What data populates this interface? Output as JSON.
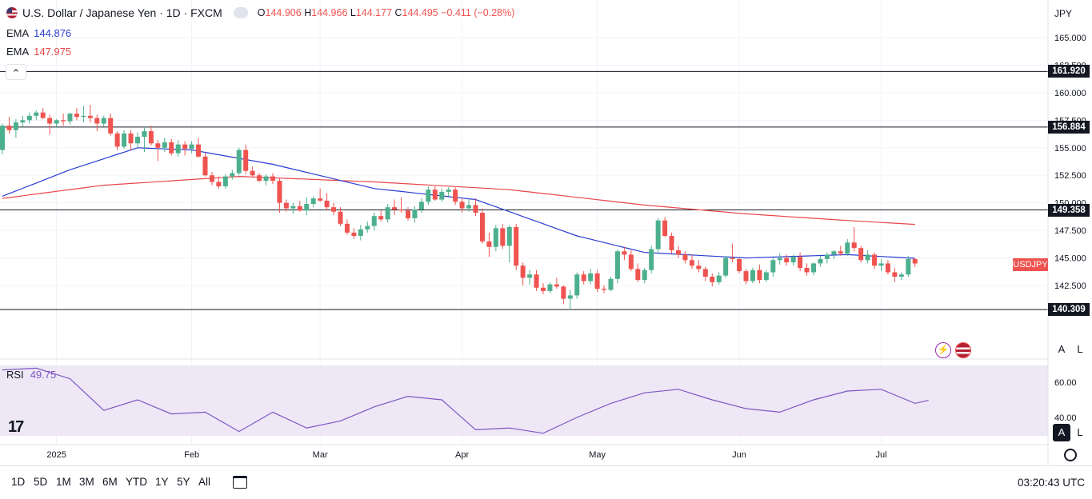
{
  "legend": {
    "symbol_title": "U.S. Dollar / Japanese Yen · 1D · FXCM",
    "ohlc": {
      "o_label": "O",
      "o": "144.906",
      "h_label": "H",
      "h": "144.966",
      "l_label": "L",
      "l": "144.177",
      "c_label": "C",
      "c": "144.495",
      "change": "−0.411 (−0.28%)"
    },
    "ema1": {
      "label": "EMA",
      "value": "144.876"
    },
    "ema2": {
      "label": "EMA",
      "value": "147.975"
    }
  },
  "colors": {
    "up": "#4caf8d",
    "down": "#ef5350",
    "ema_fast": "#2b3dcf",
    "ema_slow": "#e8464b",
    "rsi": "#7e57c2",
    "rsi_band": "#ede7f6"
  },
  "price_axis": {
    "currency": "JPY",
    "ticks": [
      "165.000",
      "162.500",
      "160.000",
      "157.500",
      "155.000",
      "152.500",
      "150.000",
      "147.500",
      "145.000",
      "142.500"
    ]
  },
  "levels": [
    {
      "value": 161.92,
      "label": "161.920"
    },
    {
      "value": 156.884,
      "label": "156.884"
    },
    {
      "value": 149.358,
      "label": "149.358"
    },
    {
      "value": 140.309,
      "label": "140.309"
    }
  ],
  "last_price_label": "USDJPY",
  "rsi": {
    "label": "RSI",
    "value": "49.75",
    "ticks": [
      "60.00",
      "40.00"
    ]
  },
  "time_axis": [
    "2025",
    "Feb",
    "Mar",
    "Apr",
    "May",
    "Jun",
    "Jul"
  ],
  "timeframes": [
    "1D",
    "5D",
    "1M",
    "3M",
    "6M",
    "YTD",
    "1Y",
    "5Y",
    "All"
  ],
  "clock": "03:20:43 UTC",
  "buttons": {
    "auto": "A",
    "log": "L",
    "collapse": "⌃"
  },
  "logo_text": "17",
  "chart_data": {
    "type": "candlestick",
    "title": "U.S. Dollar / Japanese Yen · 1D · FXCM",
    "ylim": [
      138.5,
      166.5
    ],
    "candles": [
      [
        154.8,
        157.2,
        154.4,
        157.0
      ],
      [
        157.0,
        157.8,
        156.3,
        156.6
      ],
      [
        156.6,
        157.6,
        155.9,
        157.3
      ],
      [
        157.3,
        157.9,
        156.9,
        157.5
      ],
      [
        157.5,
        158.2,
        157.2,
        157.9
      ],
      [
        157.9,
        158.4,
        157.5,
        158.2
      ],
      [
        158.2,
        158.6,
        157.6,
        157.7
      ],
      [
        157.7,
        158.0,
        156.2,
        157.2
      ],
      [
        157.2,
        157.6,
        156.8,
        157.5
      ],
      [
        157.5,
        158.1,
        157.0,
        157.4
      ],
      [
        157.4,
        158.2,
        157.1,
        158.1
      ],
      [
        158.1,
        158.6,
        157.5,
        157.8
      ],
      [
        157.8,
        158.8,
        157.3,
        157.9
      ],
      [
        157.9,
        158.9,
        157.3,
        157.7
      ],
      [
        157.7,
        158.0,
        156.5,
        157.2
      ],
      [
        157.2,
        157.9,
        156.9,
        157.7
      ],
      [
        157.7,
        158.1,
        156.1,
        156.3
      ],
      [
        156.3,
        156.5,
        154.8,
        155.1
      ],
      [
        155.1,
        156.6,
        154.9,
        156.3
      ],
      [
        156.3,
        156.6,
        154.8,
        155.4
      ],
      [
        155.4,
        156.4,
        155.0,
        156.0
      ],
      [
        156.0,
        156.9,
        154.6,
        156.5
      ],
      [
        156.5,
        157.0,
        155.2,
        155.4
      ],
      [
        155.4,
        155.7,
        153.8,
        155.0
      ],
      [
        155.0,
        155.9,
        154.6,
        155.5
      ],
      [
        155.5,
        155.8,
        154.3,
        154.5
      ],
      [
        154.5,
        155.7,
        154.2,
        155.3
      ],
      [
        155.3,
        155.6,
        154.3,
        154.9
      ],
      [
        154.9,
        155.6,
        154.5,
        155.3
      ],
      [
        155.3,
        155.9,
        154.1,
        154.2
      ],
      [
        154.2,
        154.5,
        152.4,
        152.5
      ],
      [
        152.5,
        152.8,
        151.6,
        151.9
      ],
      [
        151.9,
        152.4,
        151.3,
        151.5
      ],
      [
        151.5,
        152.6,
        151.3,
        152.4
      ],
      [
        152.4,
        153.0,
        152.1,
        152.7
      ],
      [
        152.7,
        155.0,
        152.5,
        154.8
      ],
      [
        154.8,
        155.3,
        152.6,
        152.9
      ],
      [
        152.9,
        153.3,
        152.3,
        152.5
      ],
      [
        152.5,
        152.7,
        151.9,
        152.0
      ],
      [
        152.0,
        152.6,
        151.6,
        152.4
      ],
      [
        152.4,
        152.7,
        151.7,
        152.0
      ],
      [
        152.0,
        152.3,
        149.1,
        150.0
      ],
      [
        150.0,
        150.3,
        149.2,
        149.5
      ],
      [
        149.5,
        150.0,
        149.0,
        149.7
      ],
      [
        149.7,
        150.2,
        149.2,
        149.3
      ],
      [
        149.3,
        150.5,
        148.9,
        149.9
      ],
      [
        149.9,
        150.6,
        149.6,
        150.4
      ],
      [
        150.4,
        151.3,
        150.1,
        150.2
      ],
      [
        150.2,
        150.9,
        149.3,
        149.6
      ],
      [
        149.6,
        150.0,
        148.9,
        149.2
      ],
      [
        149.2,
        149.6,
        147.9,
        148.1
      ],
      [
        148.1,
        148.5,
        147.1,
        147.3
      ],
      [
        147.3,
        147.7,
        146.7,
        147.0
      ],
      [
        147.0,
        148.0,
        146.6,
        147.6
      ],
      [
        147.6,
        148.3,
        147.3,
        147.9
      ],
      [
        147.9,
        149.1,
        147.5,
        148.8
      ],
      [
        148.8,
        149.3,
        148.3,
        148.5
      ],
      [
        148.5,
        149.9,
        148.2,
        149.6
      ],
      [
        149.6,
        150.3,
        148.9,
        149.4
      ],
      [
        149.4,
        150.5,
        149.1,
        149.3
      ],
      [
        149.3,
        149.6,
        148.4,
        148.6
      ],
      [
        148.6,
        149.7,
        148.2,
        149.4
      ],
      [
        149.4,
        150.4,
        149.1,
        150.1
      ],
      [
        150.1,
        151.5,
        149.8,
        151.2
      ],
      [
        151.2,
        151.5,
        150.2,
        150.3
      ],
      [
        150.3,
        151.3,
        150.1,
        151.0
      ],
      [
        151.0,
        151.4,
        150.6,
        151.2
      ],
      [
        151.2,
        151.4,
        149.8,
        150.1
      ],
      [
        150.1,
        150.4,
        149.1,
        149.5
      ],
      [
        149.5,
        150.4,
        149.2,
        149.8
      ],
      [
        149.8,
        150.4,
        148.8,
        149.1
      ],
      [
        149.1,
        149.5,
        146.3,
        146.5
      ],
      [
        146.5,
        147.3,
        145.1,
        146.0
      ],
      [
        146.0,
        148.0,
        145.6,
        147.7
      ],
      [
        147.7,
        148.1,
        145.8,
        146.1
      ],
      [
        146.1,
        148.0,
        144.6,
        147.8
      ],
      [
        147.8,
        148.1,
        143.9,
        144.3
      ],
      [
        144.3,
        144.6,
        142.5,
        143.2
      ],
      [
        143.2,
        143.9,
        142.6,
        143.5
      ],
      [
        143.5,
        143.9,
        142.0,
        142.3
      ],
      [
        142.3,
        142.7,
        141.7,
        142.0
      ],
      [
        142.0,
        142.8,
        141.8,
        142.6
      ],
      [
        142.6,
        143.2,
        142.2,
        142.4
      ],
      [
        142.4,
        142.5,
        140.8,
        141.3
      ],
      [
        141.3,
        142.1,
        140.3,
        141.6
      ],
      [
        141.6,
        143.7,
        141.3,
        143.5
      ],
      [
        143.5,
        143.8,
        142.6,
        142.9
      ],
      [
        142.9,
        144.0,
        142.6,
        143.6
      ],
      [
        143.6,
        143.9,
        141.9,
        142.2
      ],
      [
        142.2,
        142.5,
        141.8,
        142.1
      ],
      [
        142.1,
        143.3,
        142.0,
        143.1
      ],
      [
        143.1,
        145.8,
        142.7,
        145.6
      ],
      [
        145.6,
        146.0,
        144.8,
        145.3
      ],
      [
        145.3,
        145.7,
        143.8,
        144.0
      ],
      [
        144.0,
        144.5,
        142.8,
        143.0
      ],
      [
        143.0,
        144.1,
        142.7,
        143.9
      ],
      [
        143.9,
        146.1,
        143.6,
        145.8
      ],
      [
        145.8,
        148.6,
        145.4,
        148.4
      ],
      [
        148.4,
        148.7,
        146.9,
        147.0
      ],
      [
        147.0,
        147.3,
        145.4,
        145.7
      ],
      [
        145.7,
        146.1,
        145.0,
        145.3
      ],
      [
        145.3,
        145.6,
        144.5,
        144.8
      ],
      [
        144.8,
        145.3,
        144.0,
        144.3
      ],
      [
        144.3,
        144.8,
        143.7,
        144.0
      ],
      [
        144.0,
        144.2,
        142.9,
        143.3
      ],
      [
        143.3,
        143.6,
        142.4,
        142.8
      ],
      [
        142.8,
        143.7,
        142.6,
        143.4
      ],
      [
        143.4,
        145.2,
        143.2,
        145.0
      ],
      [
        145.0,
        146.3,
        144.6,
        144.9
      ],
      [
        144.9,
        145.0,
        143.6,
        143.8
      ],
      [
        143.8,
        144.0,
        142.6,
        142.9
      ],
      [
        142.9,
        144.1,
        142.7,
        143.9
      ],
      [
        143.9,
        144.4,
        142.7,
        143.0
      ],
      [
        143.0,
        143.9,
        142.8,
        143.7
      ],
      [
        143.7,
        145.0,
        143.3,
        144.8
      ],
      [
        144.8,
        145.4,
        144.4,
        145.0
      ],
      [
        145.0,
        145.3,
        144.3,
        144.6
      ],
      [
        144.6,
        145.3,
        144.3,
        145.1
      ],
      [
        145.1,
        145.5,
        143.8,
        144.1
      ],
      [
        144.1,
        144.5,
        143.4,
        143.7
      ],
      [
        143.7,
        144.6,
        143.4,
        144.5
      ],
      [
        144.5,
        145.2,
        144.2,
        144.9
      ],
      [
        144.9,
        145.5,
        144.5,
        145.3
      ],
      [
        145.3,
        145.7,
        144.9,
        145.6
      ],
      [
        145.6,
        146.1,
        145.2,
        145.4
      ],
      [
        145.4,
        146.7,
        145.2,
        146.4
      ],
      [
        146.4,
        147.8,
        145.6,
        145.9
      ],
      [
        145.9,
        146.1,
        144.6,
        144.8
      ],
      [
        144.8,
        145.7,
        144.5,
        145.3
      ],
      [
        145.3,
        145.5,
        144.0,
        144.3
      ],
      [
        144.3,
        144.9,
        143.8,
        144.5
      ],
      [
        144.5,
        144.8,
        143.5,
        143.7
      ],
      [
        143.7,
        144.1,
        142.8,
        143.3
      ],
      [
        143.3,
        143.7,
        143.0,
        143.5
      ],
      [
        143.5,
        145.2,
        143.3,
        144.9
      ],
      [
        144.906,
        144.966,
        144.177,
        144.495
      ]
    ],
    "ema_fast": [
      [
        0,
        150.6
      ],
      [
        10,
        153.0
      ],
      [
        20,
        155.0
      ],
      [
        28,
        154.8
      ],
      [
        40,
        153.5
      ],
      [
        55,
        151.3
      ],
      [
        70,
        150.3
      ],
      [
        85,
        147.0
      ],
      [
        95,
        145.5
      ],
      [
        110,
        145.0
      ],
      [
        125,
        145.3
      ],
      [
        137,
        144.9
      ]
    ],
    "ema_slow": [
      [
        0,
        150.4
      ],
      [
        15,
        151.6
      ],
      [
        35,
        152.4
      ],
      [
        55,
        151.9
      ],
      [
        75,
        151.2
      ],
      [
        95,
        149.8
      ],
      [
        110,
        149.0
      ],
      [
        125,
        148.4
      ],
      [
        137,
        147.975
      ]
    ],
    "rsi_values": [
      [
        0,
        67
      ],
      [
        5,
        68
      ],
      [
        10,
        62
      ],
      [
        15,
        44
      ],
      [
        20,
        50
      ],
      [
        25,
        42
      ],
      [
        30,
        43
      ],
      [
        35,
        32
      ],
      [
        40,
        43
      ],
      [
        45,
        34
      ],
      [
        50,
        38
      ],
      [
        55,
        46
      ],
      [
        60,
        52
      ],
      [
        65,
        50
      ],
      [
        70,
        33
      ],
      [
        75,
        34
      ],
      [
        80,
        31
      ],
      [
        85,
        40
      ],
      [
        90,
        48
      ],
      [
        95,
        54
      ],
      [
        100,
        56
      ],
      [
        105,
        50
      ],
      [
        110,
        45
      ],
      [
        115,
        43
      ],
      [
        120,
        50
      ],
      [
        125,
        55
      ],
      [
        130,
        56
      ],
      [
        135,
        48
      ],
      [
        137,
        49.75
      ]
    ],
    "rsi_ylim": [
      30,
      70
    ],
    "x_ticks": [
      [
        "2025",
        8
      ],
      [
        "Feb",
        28
      ],
      [
        "Mar",
        47
      ],
      [
        "Apr",
        68
      ],
      [
        "May",
        88
      ],
      [
        "Jun",
        109
      ],
      [
        "Jul",
        130
      ]
    ]
  }
}
